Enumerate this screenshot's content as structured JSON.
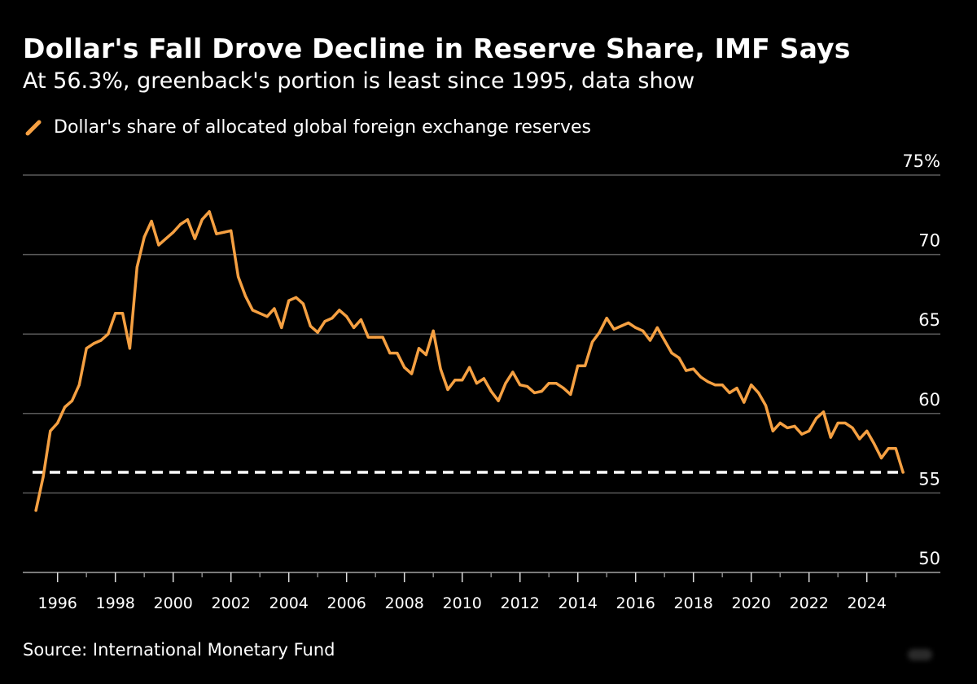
{
  "header": {
    "title": "Dollar's Fall Drove Decline in Reserve Share, IMF Says",
    "subtitle": "At 56.3%, greenback's portion is least since 1995, data show"
  },
  "legend": {
    "icon": "line-swatch-icon",
    "label": "Dollar's share of allocated global foreign exchange reserves"
  },
  "footer": {
    "source": "Source: International Monetary Fund"
  },
  "colors": {
    "background": "#000000",
    "series": "#F5A042",
    "gridline": "#5a5a5a",
    "reference_line": "#FFFFFF",
    "text": "#FFFFFF"
  },
  "chart_data": {
    "type": "line",
    "title": "Dollar's Fall Drove Decline in Reserve Share, IMF Says",
    "subtitle": "At 56.3%, greenback's portion is least since 1995, data show",
    "xlabel": "",
    "ylabel": "",
    "frequency": "quarterly",
    "start": "1995Q1",
    "xlim": [
      1995,
      2026
    ],
    "ylim": [
      50,
      75
    ],
    "grid": true,
    "legend_position": "top-left",
    "y_ticks": [
      50,
      55,
      60,
      65,
      70,
      75
    ],
    "y_tick_labels": [
      "50",
      "55",
      "60",
      "65",
      "70",
      "75%"
    ],
    "x_ticks": [
      1996,
      1998,
      2000,
      2002,
      2004,
      2006,
      2008,
      2010,
      2012,
      2014,
      2016,
      2018,
      2020,
      2022,
      2024
    ],
    "x_tick_labels": [
      "1996",
      "1998",
      "2000",
      "2002",
      "2004",
      "2006",
      "2008",
      "2010",
      "2012",
      "2014",
      "2016",
      "2018",
      "2020",
      "2022",
      "2024"
    ],
    "reference_line": {
      "value": 56.3,
      "style": "dashed",
      "label": ""
    },
    "series": [
      {
        "name": "Dollar's share of allocated global foreign exchange reserves",
        "values": [
          53.9,
          56.0,
          58.9,
          59.4,
          60.4,
          60.8,
          61.8,
          64.1,
          64.4,
          64.6,
          65.0,
          66.3,
          66.3,
          64.1,
          69.2,
          71.1,
          72.1,
          70.6,
          71.0,
          71.4,
          71.9,
          72.2,
          71.0,
          72.2,
          72.7,
          71.3,
          71.4,
          71.5,
          68.6,
          67.4,
          66.5,
          66.3,
          66.1,
          66.6,
          65.4,
          67.1,
          67.3,
          66.9,
          65.5,
          65.1,
          65.8,
          66.0,
          66.5,
          66.1,
          65.4,
          65.9,
          64.8,
          64.8,
          64.8,
          63.8,
          63.8,
          62.9,
          62.5,
          64.1,
          63.7,
          65.2,
          62.8,
          61.5,
          62.1,
          62.1,
          62.9,
          61.9,
          62.2,
          61.4,
          60.8,
          61.9,
          62.6,
          61.8,
          61.7,
          61.3,
          61.4,
          61.9,
          61.9,
          61.6,
          61.2,
          63.0,
          63.0,
          64.5,
          65.1,
          66.0,
          65.3,
          65.5,
          65.7,
          65.4,
          65.2,
          64.6,
          65.4,
          64.6,
          63.8,
          63.5,
          62.7,
          62.8,
          62.3,
          62.0,
          61.8,
          61.8,
          61.3,
          61.6,
          60.7,
          61.8,
          61.3,
          60.5,
          58.9,
          59.4,
          59.1,
          59.2,
          58.7,
          58.9,
          59.7,
          60.1,
          58.5,
          59.4,
          59.4,
          59.1,
          58.4,
          58.9,
          58.1,
          57.2,
          57.8,
          57.8,
          56.3
        ]
      }
    ]
  }
}
